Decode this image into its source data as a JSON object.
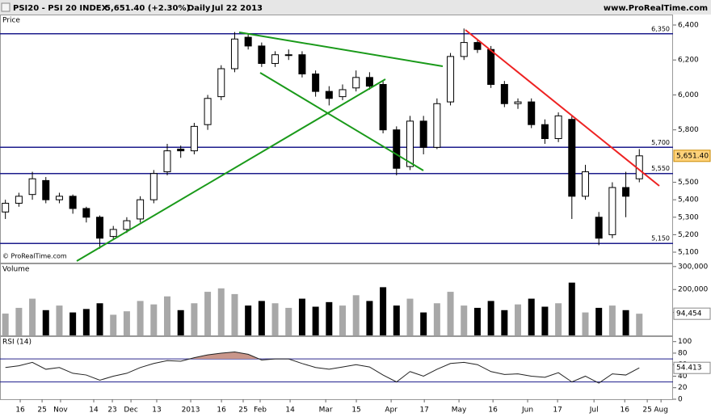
{
  "header": {
    "symbol": "PSI20 - PSI 20 INDEX",
    "price": "5,651.40 (+2.30%)",
    "period": "Daily",
    "date": "Jul 22 2013",
    "site": "www.ProRealTime.com",
    "copyright": "© ProRealTime.com"
  },
  "chart_data": [
    {
      "type": "candlestick",
      "title": "Price",
      "open": [
        5330,
        5380,
        5430,
        5510,
        5400,
        5420,
        5350,
        5300,
        5190,
        5230,
        5290,
        5400,
        5560,
        5690,
        5680,
        5830,
        5990,
        6150,
        6330,
        6280,
        6180,
        6230,
        6230,
        6120,
        6020,
        5990,
        6040,
        6100,
        6060,
        5800,
        5590,
        5850,
        5700,
        5960,
        6220,
        6300,
        6260,
        6060,
        5950,
        5960,
        5830,
        5750,
        5860,
        5420,
        5300,
        5200,
        5470,
        5520
      ],
      "high": [
        5400,
        5440,
        5560,
        5530,
        5440,
        5430,
        5360,
        5310,
        5250,
        5300,
        5420,
        5570,
        5720,
        5710,
        5840,
        6000,
        6170,
        6360,
        6350,
        6300,
        6250,
        6260,
        6250,
        6140,
        6050,
        6060,
        6140,
        6130,
        6080,
        5820,
        5880,
        5880,
        5980,
        6240,
        6380,
        6320,
        6280,
        6080,
        5980,
        5980,
        5860,
        5900,
        5880,
        5600,
        5330,
        5500,
        5560,
        5690
      ],
      "low": [
        5290,
        5360,
        5400,
        5380,
        5380,
        5320,
        5270,
        5120,
        5170,
        5210,
        5270,
        5380,
        5540,
        5640,
        5660,
        5800,
        5970,
        6130,
        6260,
        6160,
        6160,
        6200,
        6100,
        5990,
        5940,
        5970,
        6020,
        6030,
        5780,
        5540,
        5570,
        5660,
        5690,
        5940,
        6200,
        6240,
        6040,
        5930,
        5920,
        5810,
        5720,
        5730,
        5290,
        5400,
        5140,
        5180,
        5300,
        5500
      ],
      "close": [
        5380,
        5420,
        5520,
        5400,
        5420,
        5350,
        5300,
        5180,
        5230,
        5280,
        5400,
        5550,
        5680,
        5680,
        5820,
        5980,
        6150,
        6320,
        6280,
        6180,
        6230,
        6230,
        6120,
        6020,
        5980,
        6030,
        6100,
        6050,
        5800,
        5580,
        5850,
        5700,
        5950,
        6220,
        6300,
        6260,
        6060,
        5950,
        5960,
        5830,
        5750,
        5880,
        5420,
        5560,
        5180,
        5470,
        5420,
        5651.4
      ],
      "last_value_label": "5,651.40",
      "ylim": [
        5040,
        6460
      ],
      "yticks": [
        {
          "value": 6400,
          "label": "6,400"
        },
        {
          "value": 6200,
          "label": "6,200"
        },
        {
          "value": 6000,
          "label": "6,000"
        },
        {
          "value": 5800,
          "label": "5,800"
        },
        {
          "value": 5500,
          "label": "5,500"
        },
        {
          "value": 5400,
          "label": "5,400"
        },
        {
          "value": 5300,
          "label": "5,300"
        },
        {
          "value": 5200,
          "label": "5,200"
        },
        {
          "value": 5100,
          "label": "5,100"
        }
      ],
      "levels": [
        {
          "value": 6350,
          "label": "6,350"
        },
        {
          "value": 5700,
          "label": "5,700"
        },
        {
          "value": 5550,
          "label": "5,550"
        },
        {
          "value": 5150,
          "label": "5,150"
        }
      ],
      "xlim": [
        -0.4,
        49.5
      ],
      "xticks": [
        {
          "value": 1.1,
          "label": "16"
        },
        {
          "value": 2.72,
          "label": "25"
        },
        {
          "value": 4.09,
          "label": "Nov"
        },
        {
          "value": 6.55,
          "label": "14"
        },
        {
          "value": 7.93,
          "label": "23"
        },
        {
          "value": 9.31,
          "label": "Dec"
        },
        {
          "value": 11.22,
          "label": "13"
        },
        {
          "value": 13.74,
          "label": "2013"
        },
        {
          "value": 16.02,
          "label": "16"
        },
        {
          "value": 17.63,
          "label": "25"
        },
        {
          "value": 18.89,
          "label": "Feb"
        },
        {
          "value": 21.11,
          "label": "14"
        },
        {
          "value": 23.75,
          "label": "Mar"
        },
        {
          "value": 26.02,
          "label": "15"
        },
        {
          "value": 28.6,
          "label": "Apr"
        },
        {
          "value": 31.06,
          "label": "17"
        },
        {
          "value": 33.63,
          "label": "May"
        },
        {
          "value": 36.15,
          "label": "16"
        },
        {
          "value": 38.72,
          "label": "Jun"
        },
        {
          "value": 40.94,
          "label": "17"
        },
        {
          "value": 43.64,
          "label": "Jul"
        },
        {
          "value": 45.92,
          "label": "16"
        },
        {
          "value": 47.59,
          "label": "25"
        },
        {
          "value": 48.61,
          "label": "Aug"
        }
      ]
    },
    {
      "type": "bar",
      "title": "Volume",
      "values": [
        95000,
        120000,
        160000,
        110000,
        130000,
        100000,
        115000,
        140000,
        90000,
        105000,
        150000,
        135000,
        170000,
        110000,
        140000,
        190000,
        205000,
        180000,
        130000,
        150000,
        140000,
        120000,
        160000,
        125000,
        145000,
        130000,
        175000,
        150000,
        210000,
        130000,
        160000,
        100000,
        140000,
        190000,
        130000,
        120000,
        150000,
        110000,
        135000,
        160000,
        125000,
        140000,
        230000,
        100000,
        120000,
        130000,
        110000,
        94454
      ],
      "last_value_label": "94,454",
      "ylim": [
        0,
        310000
      ],
      "yticks": [
        {
          "value": 300000,
          "label": "300,000"
        },
        {
          "value": 200000,
          "label": "200,000"
        },
        {
          "value": 100000,
          "label": "100,000"
        }
      ]
    },
    {
      "type": "line",
      "title": "RSI (14)",
      "values": [
        55,
        58,
        64,
        52,
        55,
        45,
        42,
        33,
        40,
        45,
        55,
        62,
        67,
        66,
        72,
        77,
        80,
        82,
        78,
        68,
        70,
        70,
        62,
        55,
        52,
        56,
        60,
        56,
        42,
        30,
        48,
        40,
        52,
        62,
        64,
        60,
        48,
        43,
        44,
        40,
        38,
        46,
        30,
        40,
        28,
        44,
        42,
        54.413
      ],
      "ylim": [
        0,
        108
      ],
      "yticks": [
        100,
        80,
        60,
        40,
        20,
        0
      ],
      "levels": [
        70,
        30
      ]
    }
  ]
}
